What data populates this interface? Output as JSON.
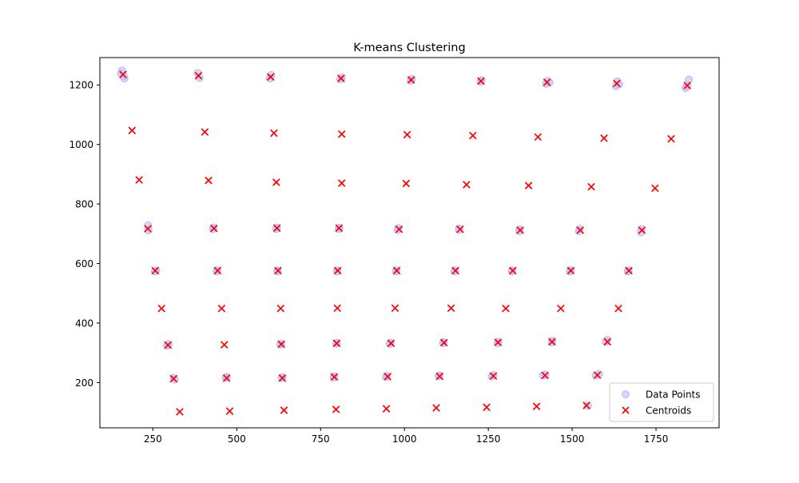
{
  "chart_data": {
    "type": "scatter",
    "title": "K-means Clustering",
    "xlabel": "",
    "ylabel": "",
    "xlim": [
      92,
      1938
    ],
    "ylim": [
      48,
      1292
    ],
    "x_ticks": [
      250,
      500,
      750,
      1000,
      1250,
      1500,
      1750
    ],
    "y_ticks": [
      200,
      400,
      600,
      800,
      1000,
      1200
    ],
    "grid": false,
    "legend": {
      "placement": "lower right",
      "entries": [
        "Data Points",
        "Centroids"
      ]
    },
    "series": [
      {
        "name": "Data Points",
        "marker": "circle",
        "color": "#c8c8ff",
        "points": [
          [
            158,
            1248
          ],
          [
            165,
            1222
          ],
          [
            155,
            1238
          ],
          [
            163,
            1230
          ],
          [
            384,
            1240
          ],
          [
            389,
            1224
          ],
          [
            603,
            1233
          ],
          [
            599,
            1222
          ],
          [
            813,
            1225
          ],
          [
            809,
            1219
          ],
          [
            1022,
            1220
          ],
          [
            1019,
            1214
          ],
          [
            1230,
            1216
          ],
          [
            1227,
            1211
          ],
          [
            1427,
            1214
          ],
          [
            1422,
            1204
          ],
          [
            1432,
            1208
          ],
          [
            1635,
            1212
          ],
          [
            1630,
            1196
          ],
          [
            1640,
            1202
          ],
          [
            1848,
            1218
          ],
          [
            1838,
            1190
          ],
          [
            1843,
            1198
          ],
          [
            236,
            728
          ],
          [
            237,
            712
          ],
          [
            431,
            721
          ],
          [
            429,
            716
          ],
          [
            620,
            721
          ],
          [
            618,
            716
          ],
          [
            806,
            720
          ],
          [
            804,
            716
          ],
          [
            982,
            719
          ],
          [
            980,
            713
          ],
          [
            1163,
            718
          ],
          [
            1163,
            713
          ],
          [
            1344,
            715
          ],
          [
            1342,
            709
          ],
          [
            1522,
            716
          ],
          [
            1520,
            709
          ],
          [
            1707,
            716
          ],
          [
            1705,
            705
          ],
          [
            260,
            576
          ],
          [
            256,
            574
          ],
          [
            442,
            577
          ],
          [
            440,
            574
          ],
          [
            622,
            576
          ],
          [
            621,
            574
          ],
          [
            800,
            577
          ],
          [
            799,
            574
          ],
          [
            976,
            577
          ],
          [
            975,
            574
          ],
          [
            1150,
            577
          ],
          [
            1149,
            574
          ],
          [
            1321,
            577
          ],
          [
            1320,
            574
          ],
          [
            1495,
            577
          ],
          [
            1493,
            574
          ],
          [
            1668,
            577
          ],
          [
            1666,
            574
          ],
          [
            297,
            329
          ],
          [
            292,
            324
          ],
          [
            632,
            329
          ],
          [
            630,
            328
          ],
          [
            798,
            333
          ],
          [
            797,
            331
          ],
          [
            958,
            334
          ],
          [
            956,
            330
          ],
          [
            1116,
            336
          ],
          [
            1115,
            333
          ],
          [
            1280,
            337
          ],
          [
            1278,
            332
          ],
          [
            1441,
            340
          ],
          [
            1439,
            335
          ],
          [
            1605,
            343
          ],
          [
            1600,
            337
          ],
          [
            312,
            216
          ],
          [
            315,
            210
          ],
          [
            470,
            219
          ],
          [
            468,
            216
          ],
          [
            636,
            218
          ],
          [
            634,
            216
          ],
          [
            790,
            220
          ],
          [
            789,
            218
          ],
          [
            947,
            222
          ],
          [
            945,
            219
          ],
          [
            1104,
            224
          ],
          [
            1102,
            222
          ],
          [
            1265,
            225
          ],
          [
            1260,
            221
          ],
          [
            1420,
            227
          ],
          [
            1413,
            224
          ],
          [
            1580,
            229
          ],
          [
            1570,
            224
          ],
          [
            1547,
            122
          ]
        ]
      },
      {
        "name": "Centroids",
        "marker": "x",
        "color": "#ff0000",
        "points": [
          [
            161,
            1235
          ],
          [
            386,
            1231
          ],
          [
            601,
            1227
          ],
          [
            811,
            1222
          ],
          [
            1020,
            1217
          ],
          [
            1228,
            1213
          ],
          [
            1425,
            1209
          ],
          [
            1633,
            1205
          ],
          [
            1843,
            1198
          ],
          [
            188,
            1047
          ],
          [
            405,
            1042
          ],
          [
            611,
            1038
          ],
          [
            813,
            1035
          ],
          [
            1008,
            1033
          ],
          [
            1204,
            1030
          ],
          [
            1398,
            1025
          ],
          [
            1595,
            1021
          ],
          [
            1795,
            1019
          ],
          [
            209,
            881
          ],
          [
            416,
            879
          ],
          [
            618,
            873
          ],
          [
            813,
            870
          ],
          [
            1005,
            869
          ],
          [
            1185,
            865
          ],
          [
            1370,
            862
          ],
          [
            1557,
            858
          ],
          [
            1747,
            853
          ],
          [
            235,
            717
          ],
          [
            432,
            718
          ],
          [
            620,
            719
          ],
          [
            805,
            719
          ],
          [
            984,
            715
          ],
          [
            1166,
            715
          ],
          [
            1345,
            712
          ],
          [
            1524,
            712
          ],
          [
            1708,
            712
          ],
          [
            257,
            576
          ],
          [
            443,
            576
          ],
          [
            623,
            576
          ],
          [
            801,
            576
          ],
          [
            977,
            576
          ],
          [
            1152,
            576
          ],
          [
            1323,
            576
          ],
          [
            1496,
            576
          ],
          [
            1669,
            576
          ],
          [
            276,
            449
          ],
          [
            455,
            449
          ],
          [
            631,
            449
          ],
          [
            800,
            450
          ],
          [
            972,
            450
          ],
          [
            1139,
            450
          ],
          [
            1302,
            449
          ],
          [
            1466,
            449
          ],
          [
            1638,
            449
          ],
          [
            295,
            326
          ],
          [
            463,
            327
          ],
          [
            633,
            329
          ],
          [
            798,
            332
          ],
          [
            960,
            332
          ],
          [
            1118,
            334
          ],
          [
            1279,
            335
          ],
          [
            1440,
            337
          ],
          [
            1605,
            337
          ],
          [
            312,
            213
          ],
          [
            470,
            215
          ],
          [
            636,
            215
          ],
          [
            791,
            219
          ],
          [
            950,
            220
          ],
          [
            1105,
            221
          ],
          [
            1265,
            222
          ],
          [
            1419,
            224
          ],
          [
            1575,
            225
          ],
          [
            330,
            102
          ],
          [
            479,
            104
          ],
          [
            641,
            107
          ],
          [
            796,
            110
          ],
          [
            946,
            112
          ],
          [
            1095,
            115
          ],
          [
            1245,
            117
          ],
          [
            1394,
            120
          ],
          [
            1543,
            123
          ]
        ]
      }
    ]
  }
}
